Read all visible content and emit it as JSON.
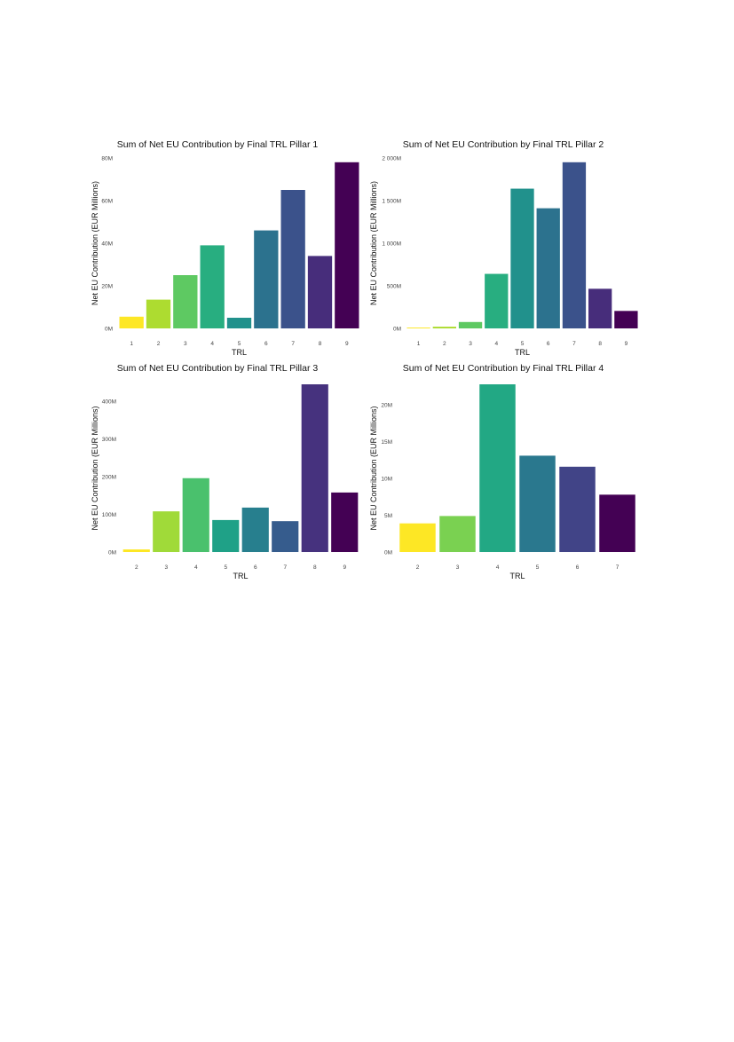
{
  "chart_data": [
    {
      "type": "bar",
      "title": "Sum of Net EU Contribution by Final TRL Pillar 1",
      "xlabel": "TRL",
      "ylabel": "Net EU Contribution (EUR Millions)",
      "categories": [
        "1",
        "2",
        "3",
        "4",
        "5",
        "6",
        "7",
        "8",
        "9"
      ],
      "values": [
        5.5,
        13.5,
        25,
        39,
        5,
        46,
        65,
        34,
        78
      ],
      "ylim": [
        0,
        80
      ],
      "yticks": [
        0,
        20,
        40,
        60,
        80
      ],
      "ytick_labels": [
        "0M",
        "20M",
        "40M",
        "60M",
        "80M"
      ],
      "colors": [
        "#fde725",
        "#addc30",
        "#5ec962",
        "#28ae80",
        "#21918c",
        "#2c728e",
        "#3b528b",
        "#472d7b",
        "#440154"
      ],
      "grid": false
    },
    {
      "type": "bar",
      "title": "Sum of Net EU Contribution by Final TRL Pillar 2",
      "xlabel": "TRL",
      "ylabel": "Net EU Contribution (EUR Millions)",
      "categories": [
        "1",
        "2",
        "3",
        "4",
        "5",
        "6",
        "7",
        "8",
        "9"
      ],
      "values": [
        10,
        20,
        75,
        640,
        1640,
        1410,
        1950,
        465,
        205
      ],
      "ylim": [
        0,
        2000
      ],
      "yticks": [
        0,
        500,
        1000,
        1500,
        2000
      ],
      "ytick_labels": [
        "0M",
        "500M",
        "1 000M",
        "1 500M",
        "2 000M"
      ],
      "colors": [
        "#fde725",
        "#addc30",
        "#5ec962",
        "#28ae80",
        "#21918c",
        "#2c728e",
        "#3b528b",
        "#472d7b",
        "#440154"
      ],
      "grid": false
    },
    {
      "type": "bar",
      "title": "Sum of Net EU Contribution by Final TRL Pillar 3",
      "xlabel": "TRL",
      "ylabel": "Net EU Contribution (EUR Millions)",
      "categories": [
        "2",
        "3",
        "4",
        "5",
        "6",
        "7",
        "8",
        "9"
      ],
      "values": [
        7,
        108,
        196,
        85,
        118,
        82,
        445,
        158
      ],
      "ylim": [
        0,
        445
      ],
      "yticks": [
        0,
        100,
        200,
        300,
        400
      ],
      "ytick_labels": [
        "0M",
        "100M",
        "200M",
        "300M",
        "400M"
      ],
      "colors": [
        "#fde725",
        "#a0da39",
        "#4ac16d",
        "#1fa187",
        "#277f8e",
        "#365c8d",
        "#46327e",
        "#440154"
      ],
      "grid": false
    },
    {
      "type": "bar",
      "title": "Sum of Net EU Contribution by Final TRL Pillar 4",
      "xlabel": "TRL",
      "ylabel": "Net EU Contribution (EUR Millions)",
      "categories": [
        "2",
        "3",
        "4",
        "5",
        "6",
        "7"
      ],
      "values": [
        3.9,
        4.9,
        22.8,
        13.1,
        11.6,
        7.8
      ],
      "ylim": [
        0,
        22.8
      ],
      "yticks": [
        0,
        5,
        10,
        15,
        20
      ],
      "ytick_labels": [
        "0M",
        "5M",
        "10M",
        "15M",
        "20M"
      ],
      "colors": [
        "#fde725",
        "#7ad151",
        "#22a884",
        "#2a788e",
        "#414487",
        "#440154"
      ],
      "grid": false
    }
  ]
}
